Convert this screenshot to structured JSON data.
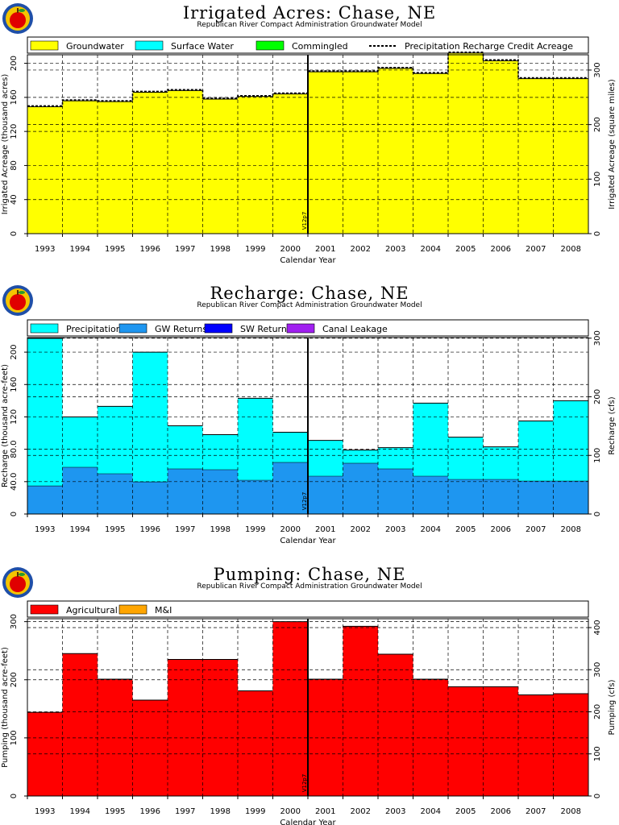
{
  "chart_data": [
    {
      "type": "bar",
      "title": "Irrigated Acres: Chase, NE",
      "subtitle": "Republican River Compact Administration Groundwater Model",
      "xlabel": "Calendar Year",
      "ylabel": "Irrigated Acreage (thousand acres)",
      "ylabel_right": "Irrigated Acreage (square miles)",
      "categories": [
        "1993",
        "1994",
        "1995",
        "1996",
        "1997",
        "1998",
        "1999",
        "2000",
        "2001",
        "2002",
        "2003",
        "2004",
        "2005",
        "2006",
        "2007",
        "2008"
      ],
      "ylim": [
        0,
        210
      ],
      "yticks": [
        "0",
        "40",
        "80",
        "120",
        "160",
        "200"
      ],
      "ylim_right": [
        0,
        328
      ],
      "yticks_right": [
        "0",
        "100",
        "200",
        "300"
      ],
      "grid": true,
      "legend_position": "top",
      "marker_label": "V12p7",
      "marker_after": "2000",
      "series": [
        {
          "name": "Groundwater",
          "color": "#ffff00",
          "values": [
            149,
            156,
            155,
            166,
            168,
            158,
            161,
            164,
            190,
            190,
            194,
            188,
            212,
            203,
            182,
            182
          ]
        },
        {
          "name": "Surface Water",
          "color": "#00ffff",
          "values": [
            0,
            0,
            0,
            0,
            0,
            0,
            0,
            0,
            0,
            0,
            0,
            0,
            0,
            0,
            0,
            0
          ]
        },
        {
          "name": "Commingled",
          "color": "#00ff00",
          "values": [
            0,
            0,
            0,
            0,
            0,
            0,
            0,
            0,
            0,
            0,
            0,
            0,
            0,
            0,
            0,
            0
          ]
        },
        {
          "name": "Precipitation Recharge Credit Acreage",
          "color": "#000000",
          "style": "dashed",
          "values": [
            150,
            157,
            156,
            167,
            169,
            159,
            162,
            165,
            191,
            191,
            195,
            189,
            213,
            204,
            183,
            183
          ]
        }
      ]
    },
    {
      "type": "bar",
      "title": "Recharge: Chase, NE",
      "subtitle": "Republican River Compact Administration Groundwater Model",
      "xlabel": "Calendar Year",
      "ylabel": "Recharge (thousand acre-feet)",
      "ylabel_right": "Recharge (cfs)",
      "categories": [
        "1993",
        "1994",
        "1995",
        "1996",
        "1997",
        "1998",
        "1999",
        "2000",
        "2001",
        "2002",
        "2003",
        "2004",
        "2005",
        "2006",
        "2007",
        "2008"
      ],
      "ylim": [
        0,
        218
      ],
      "yticks": [
        "0",
        "40.0",
        "80.0",
        "120",
        "160",
        "200"
      ],
      "ylim_right": [
        0,
        301
      ],
      "yticks_right": [
        "0",
        "100",
        "200",
        "300"
      ],
      "grid": true,
      "legend_position": "top",
      "marker_label": "V12p7",
      "marker_after": "2000",
      "series": [
        {
          "name": "Precipitation",
          "color": "#00ffff",
          "values": [
            182,
            62,
            83,
            160,
            53,
            43,
            101,
            37,
            44,
            16,
            26,
            90,
            52,
            40,
            74,
            99
          ]
        },
        {
          "name": "GW Returns",
          "color": "#1e96f0",
          "values": [
            35,
            58,
            50,
            40,
            56,
            55,
            42,
            64,
            47,
            63,
            56,
            47,
            43,
            43,
            41,
            41
          ]
        },
        {
          "name": "SW Returns",
          "color": "#0000ff",
          "values": [
            0,
            0,
            0,
            0,
            0,
            0,
            0,
            0,
            0,
            0,
            0,
            0,
            0,
            0,
            0,
            0
          ]
        },
        {
          "name": "Canal Leakage",
          "color": "#a020f0",
          "values": [
            0,
            0,
            0,
            0,
            0,
            0,
            0,
            0,
            0,
            0,
            0,
            0,
            0,
            0,
            0,
            0
          ]
        }
      ]
    },
    {
      "type": "bar",
      "title": "Pumping: Chase, NE",
      "subtitle": "Republican River Compact Administration Groundwater Model",
      "xlabel": "Calendar Year",
      "ylabel": "Pumping (thousand acre-feet)",
      "ylabel_right": "Pumping (cfs)",
      "categories": [
        "1993",
        "1994",
        "1995",
        "1996",
        "1997",
        "1998",
        "1999",
        "2000",
        "2001",
        "2002",
        "2003",
        "2004",
        "2005",
        "2006",
        "2007",
        "2008"
      ],
      "ylim": [
        0,
        305
      ],
      "yticks": [
        "0",
        "100",
        "200",
        "300"
      ],
      "ylim_right": [
        0,
        421
      ],
      "yticks_right": [
        "0",
        "100",
        "200",
        "300",
        "400"
      ],
      "grid": true,
      "legend_position": "top",
      "marker_label": "V12p7",
      "marker_after": "2000",
      "series": [
        {
          "name": "Agricultural",
          "color": "#ff0000",
          "values": [
            144,
            245,
            201,
            165,
            235,
            235,
            181,
            300,
            201,
            292,
            244,
            201,
            188,
            188,
            174,
            176
          ]
        },
        {
          "name": "M&I",
          "color": "#ffa500",
          "values": [
            0,
            0,
            0,
            0,
            0,
            0,
            0,
            0,
            0,
            0,
            0,
            0,
            0,
            0,
            0,
            0
          ]
        }
      ]
    }
  ]
}
